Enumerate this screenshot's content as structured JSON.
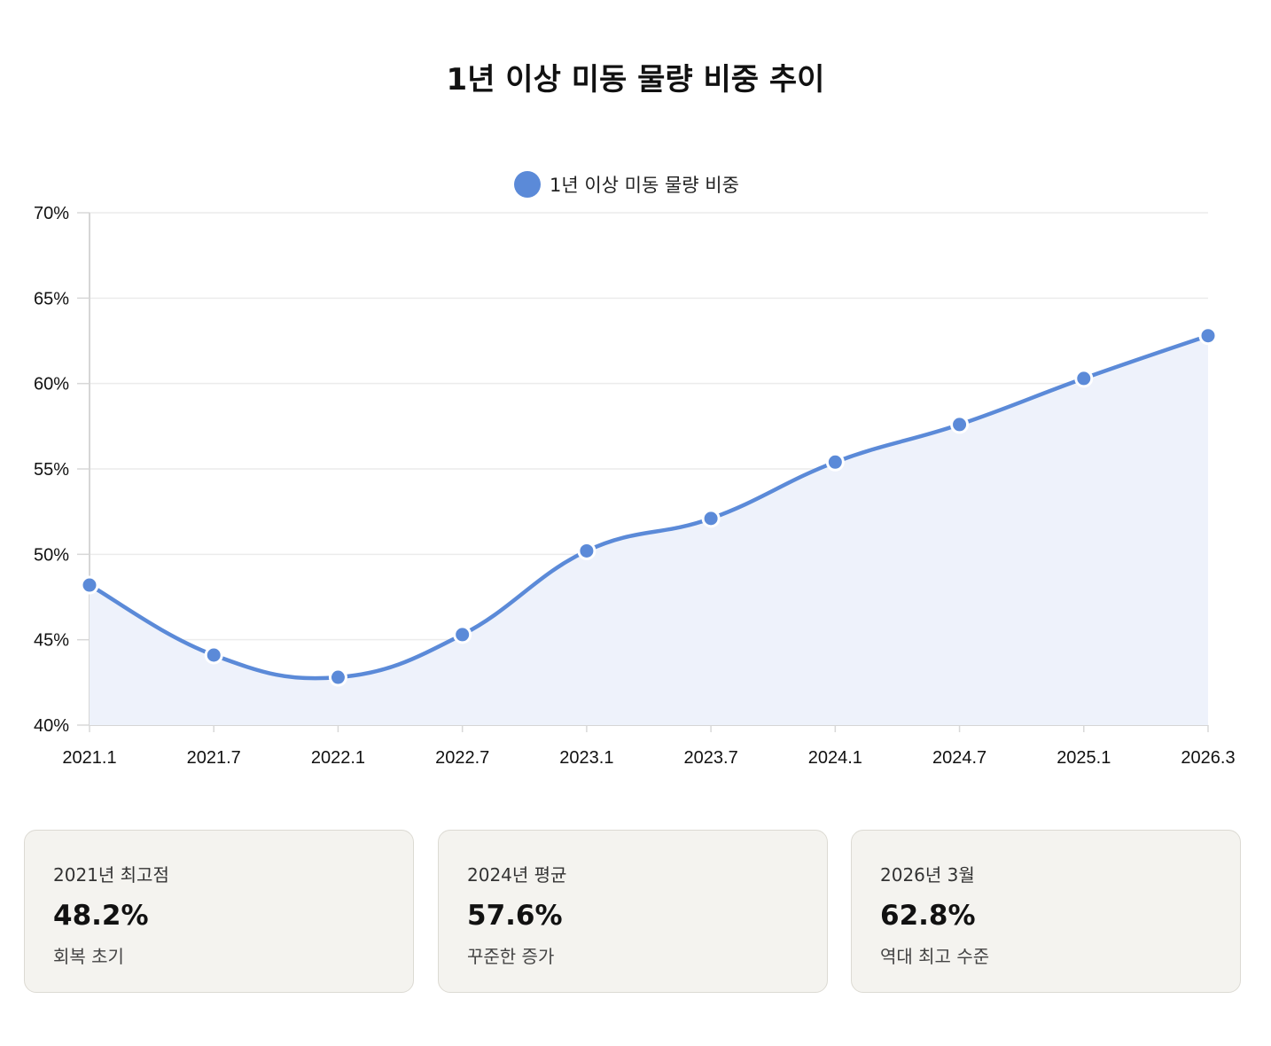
{
  "title": "1년 이상 미동 물량 비중 추이",
  "chart_data": {
    "type": "line",
    "title": "1년 이상 미동 물량 비중 추이",
    "categories": [
      "2021.1",
      "2021.7",
      "2022.1",
      "2022.7",
      "2023.1",
      "2023.7",
      "2024.1",
      "2024.7",
      "2025.1",
      "2026.3"
    ],
    "series": [
      {
        "name": "1년 이상 미동 물량 비중",
        "values": [
          48.2,
          44.1,
          42.8,
          45.3,
          50.2,
          52.1,
          55.4,
          57.6,
          60.3,
          62.8
        ],
        "color": "#5b8ad8",
        "fill": "#eef2fb"
      }
    ],
    "ylim": [
      40,
      70
    ],
    "yticks": [
      40,
      45,
      50,
      55,
      60,
      65,
      70
    ],
    "ytick_labels": [
      "40%",
      "45%",
      "50%",
      "55%",
      "60%",
      "65%",
      "70%"
    ],
    "legend": "top-center",
    "grid": true,
    "xlabel": "",
    "ylabel": ""
  },
  "cards": [
    {
      "label": "2021년 최고점",
      "value": "48.2%",
      "desc": "회복 초기"
    },
    {
      "label": "2024년 평균",
      "value": "57.6%",
      "desc": "꾸준한 증가"
    },
    {
      "label": "2026년 3월",
      "value": "62.8%",
      "desc": "역대 최고 수준"
    }
  ]
}
